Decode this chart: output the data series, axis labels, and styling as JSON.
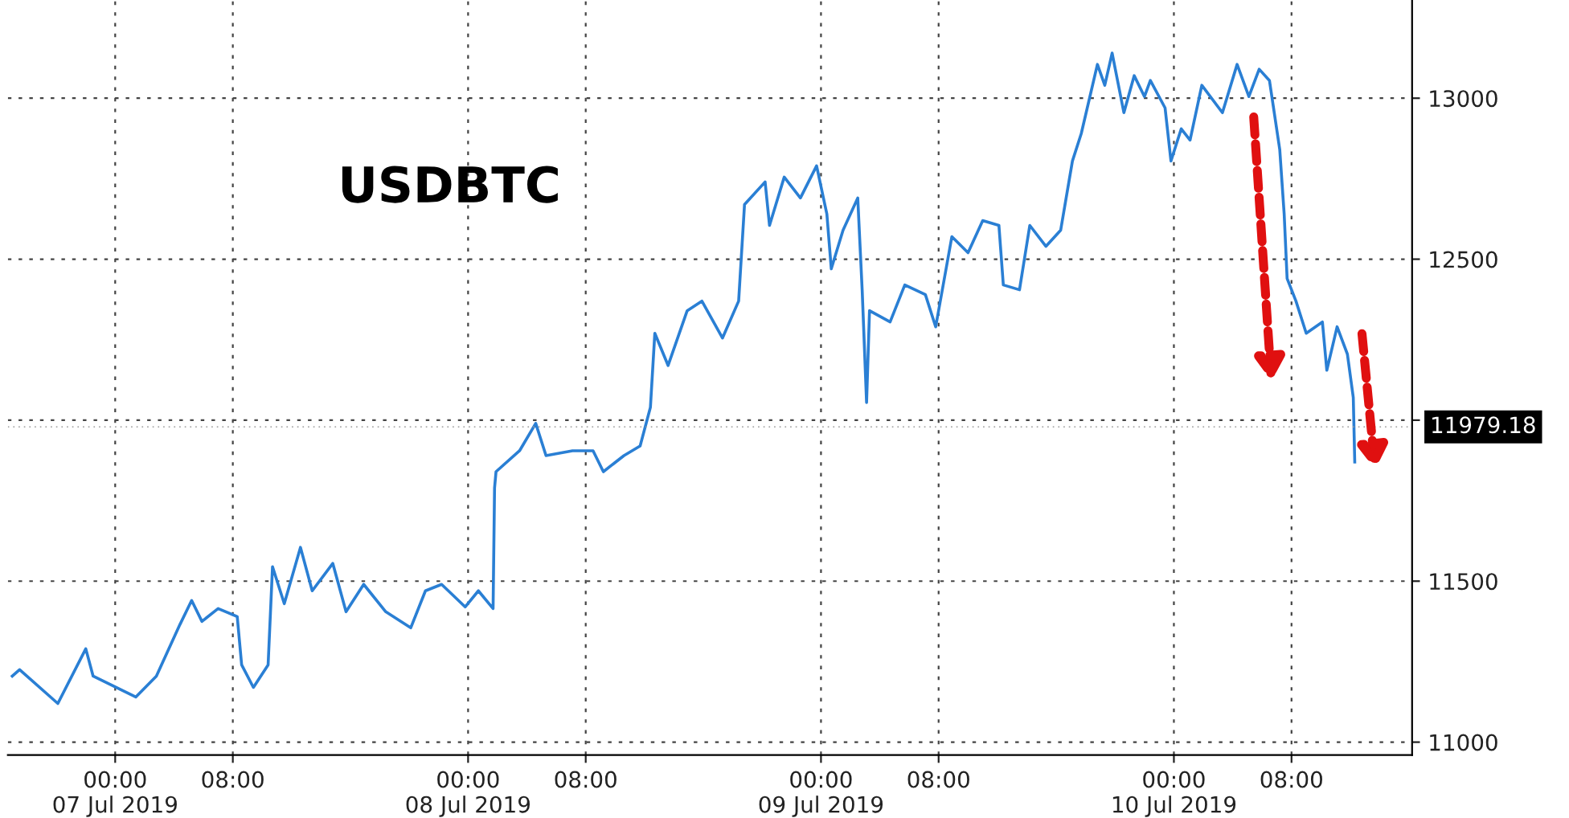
{
  "chart_data": {
    "type": "line",
    "title": "USDBTC",
    "x": [
      "2019-07-06T17:00",
      "2019-07-06T17:30",
      "2019-07-06T20:06",
      "2019-07-06T22:00",
      "2019-07-06T22:30",
      "2019-07-07T01:24",
      "2019-07-07T02:48",
      "2019-07-07T04:24",
      "2019-07-07T05:12",
      "2019-07-07T05:54",
      "2019-07-07T07:00",
      "2019-07-07T08:18",
      "2019-07-07T08:36",
      "2019-07-07T09:24",
      "2019-07-07T10:24",
      "2019-07-07T10:42",
      "2019-07-07T11:30",
      "2019-07-07T12:36",
      "2019-07-07T13:24",
      "2019-07-07T14:48",
      "2019-07-07T15:42",
      "2019-07-07T16:54",
      "2019-07-07T18:24",
      "2019-07-07T20:06",
      "2019-07-07T21:06",
      "2019-07-07T22:12",
      "2019-07-07T23:48",
      "2019-07-08T00:42",
      "2019-07-08T01:42",
      "2019-07-08T01:48",
      "2019-07-08T01:54",
      "2019-07-08T03:30",
      "2019-07-08T04:36",
      "2019-07-08T05:18",
      "2019-07-08T07:06",
      "2019-07-08T08:30",
      "2019-07-08T09:12",
      "2019-07-08T10:36",
      "2019-07-08T11:42",
      "2019-07-08T12:24",
      "2019-07-08T12:42",
      "2019-07-08T13:36",
      "2019-07-08T14:54",
      "2019-07-08T15:54",
      "2019-07-08T17:18",
      "2019-07-08T18:24",
      "2019-07-08T18:48",
      "2019-07-08T20:12",
      "2019-07-08T20:30",
      "2019-07-08T21:30",
      "2019-07-08T22:36",
      "2019-07-08T23:42",
      "2019-07-09T00:24",
      "2019-07-09T00:42",
      "2019-07-09T01:30",
      "2019-07-09T02:30",
      "2019-07-09T02:48",
      "2019-07-09T03:06",
      "2019-07-09T03:18",
      "2019-07-09T04:42",
      "2019-07-09T05:42",
      "2019-07-09T07:06",
      "2019-07-09T07:48",
      "2019-07-09T08:54",
      "2019-07-09T10:00",
      "2019-07-09T11:00",
      "2019-07-09T12:06",
      "2019-07-09T12:24",
      "2019-07-09T13:30",
      "2019-07-09T14:12",
      "2019-07-09T15:18",
      "2019-07-09T16:18",
      "2019-07-09T17:06",
      "2019-07-09T17:42",
      "2019-07-09T18:48",
      "2019-07-09T19:18",
      "2019-07-09T19:48",
      "2019-07-09T20:36",
      "2019-07-09T21:18",
      "2019-07-09T22:00",
      "2019-07-09T22:24",
      "2019-07-09T23:24",
      "2019-07-09T23:48",
      "2019-07-10T00:30",
      "2019-07-10T01:06",
      "2019-07-10T01:54",
      "2019-07-10T03:18",
      "2019-07-10T04:18",
      "2019-07-10T05:06",
      "2019-07-10T05:48",
      "2019-07-10T06:30",
      "2019-07-10T07:12",
      "2019-07-10T07:30",
      "2019-07-10T07:42",
      "2019-07-10T08:18",
      "2019-07-10T09:00",
      "2019-07-10T10:06",
      "2019-07-10T10:24",
      "2019-07-10T11:06",
      "2019-07-10T11:48",
      "2019-07-10T12:12",
      "2019-07-10T12:18"
    ],
    "series": [
      {
        "color": "#2a7fd4",
        "values": [
          11205,
          11225,
          11120,
          11290,
          11205,
          11140,
          11205,
          11365,
          11440,
          11375,
          11415,
          11390,
          11240,
          11170,
          11240,
          11545,
          11430,
          11605,
          11470,
          11555,
          11405,
          11490,
          11405,
          11355,
          11470,
          11490,
          11420,
          11470,
          11415,
          11790,
          11840,
          11905,
          11990,
          11890,
          11905,
          11905,
          11840,
          11890,
          11920,
          12040,
          12270,
          12170,
          12340,
          12370,
          12255,
          12370,
          12670,
          12740,
          12605,
          12755,
          12690,
          12790,
          12640,
          12470,
          12590,
          12690,
          12405,
          12055,
          12340,
          12305,
          12420,
          12390,
          12290,
          12570,
          12520,
          12620,
          12605,
          12420,
          12405,
          12605,
          12540,
          12590,
          12805,
          12890,
          13105,
          13040,
          13140,
          12955,
          13070,
          13005,
          13055,
          12970,
          12805,
          12905,
          12870,
          13040,
          12955,
          13105,
          13005,
          13090,
          13055,
          12840,
          12640,
          12440,
          12370,
          12270,
          12305,
          12155,
          12290,
          12205,
          12070,
          11870
        ]
      }
    ],
    "xlim": [
      "2019-07-06T16:42",
      "2019-07-10T16:12"
    ],
    "xticks": [
      {
        "value": "2019-07-07T00:00",
        "label": "00:00\n07 Jul 2019"
      },
      {
        "value": "2019-07-07T08:00",
        "label": "08:00"
      },
      {
        "value": "2019-07-08T00:00",
        "label": "00:00\n08 Jul 2019"
      },
      {
        "value": "2019-07-08T08:00",
        "label": "08:00"
      },
      {
        "value": "2019-07-09T00:00",
        "label": "00:00\n09 Jul 2019"
      },
      {
        "value": "2019-07-09T08:00",
        "label": "08:00"
      },
      {
        "value": "2019-07-10T00:00",
        "label": "00:00\n10 Jul 2019"
      },
      {
        "value": "2019-07-10T08:00",
        "label": "08:00"
      }
    ],
    "ylim": [
      10960,
      13305
    ],
    "yticks": [
      11000,
      11500,
      {
        "value": 12000,
        "label": null
      },
      12500,
      13000
    ],
    "ref_lines": [
      {
        "axis": "y",
        "value": 11979.18,
        "label": "11979.18"
      }
    ],
    "grid": true,
    "legend": false,
    "marker": "none",
    "line_style": "solid"
  }
}
